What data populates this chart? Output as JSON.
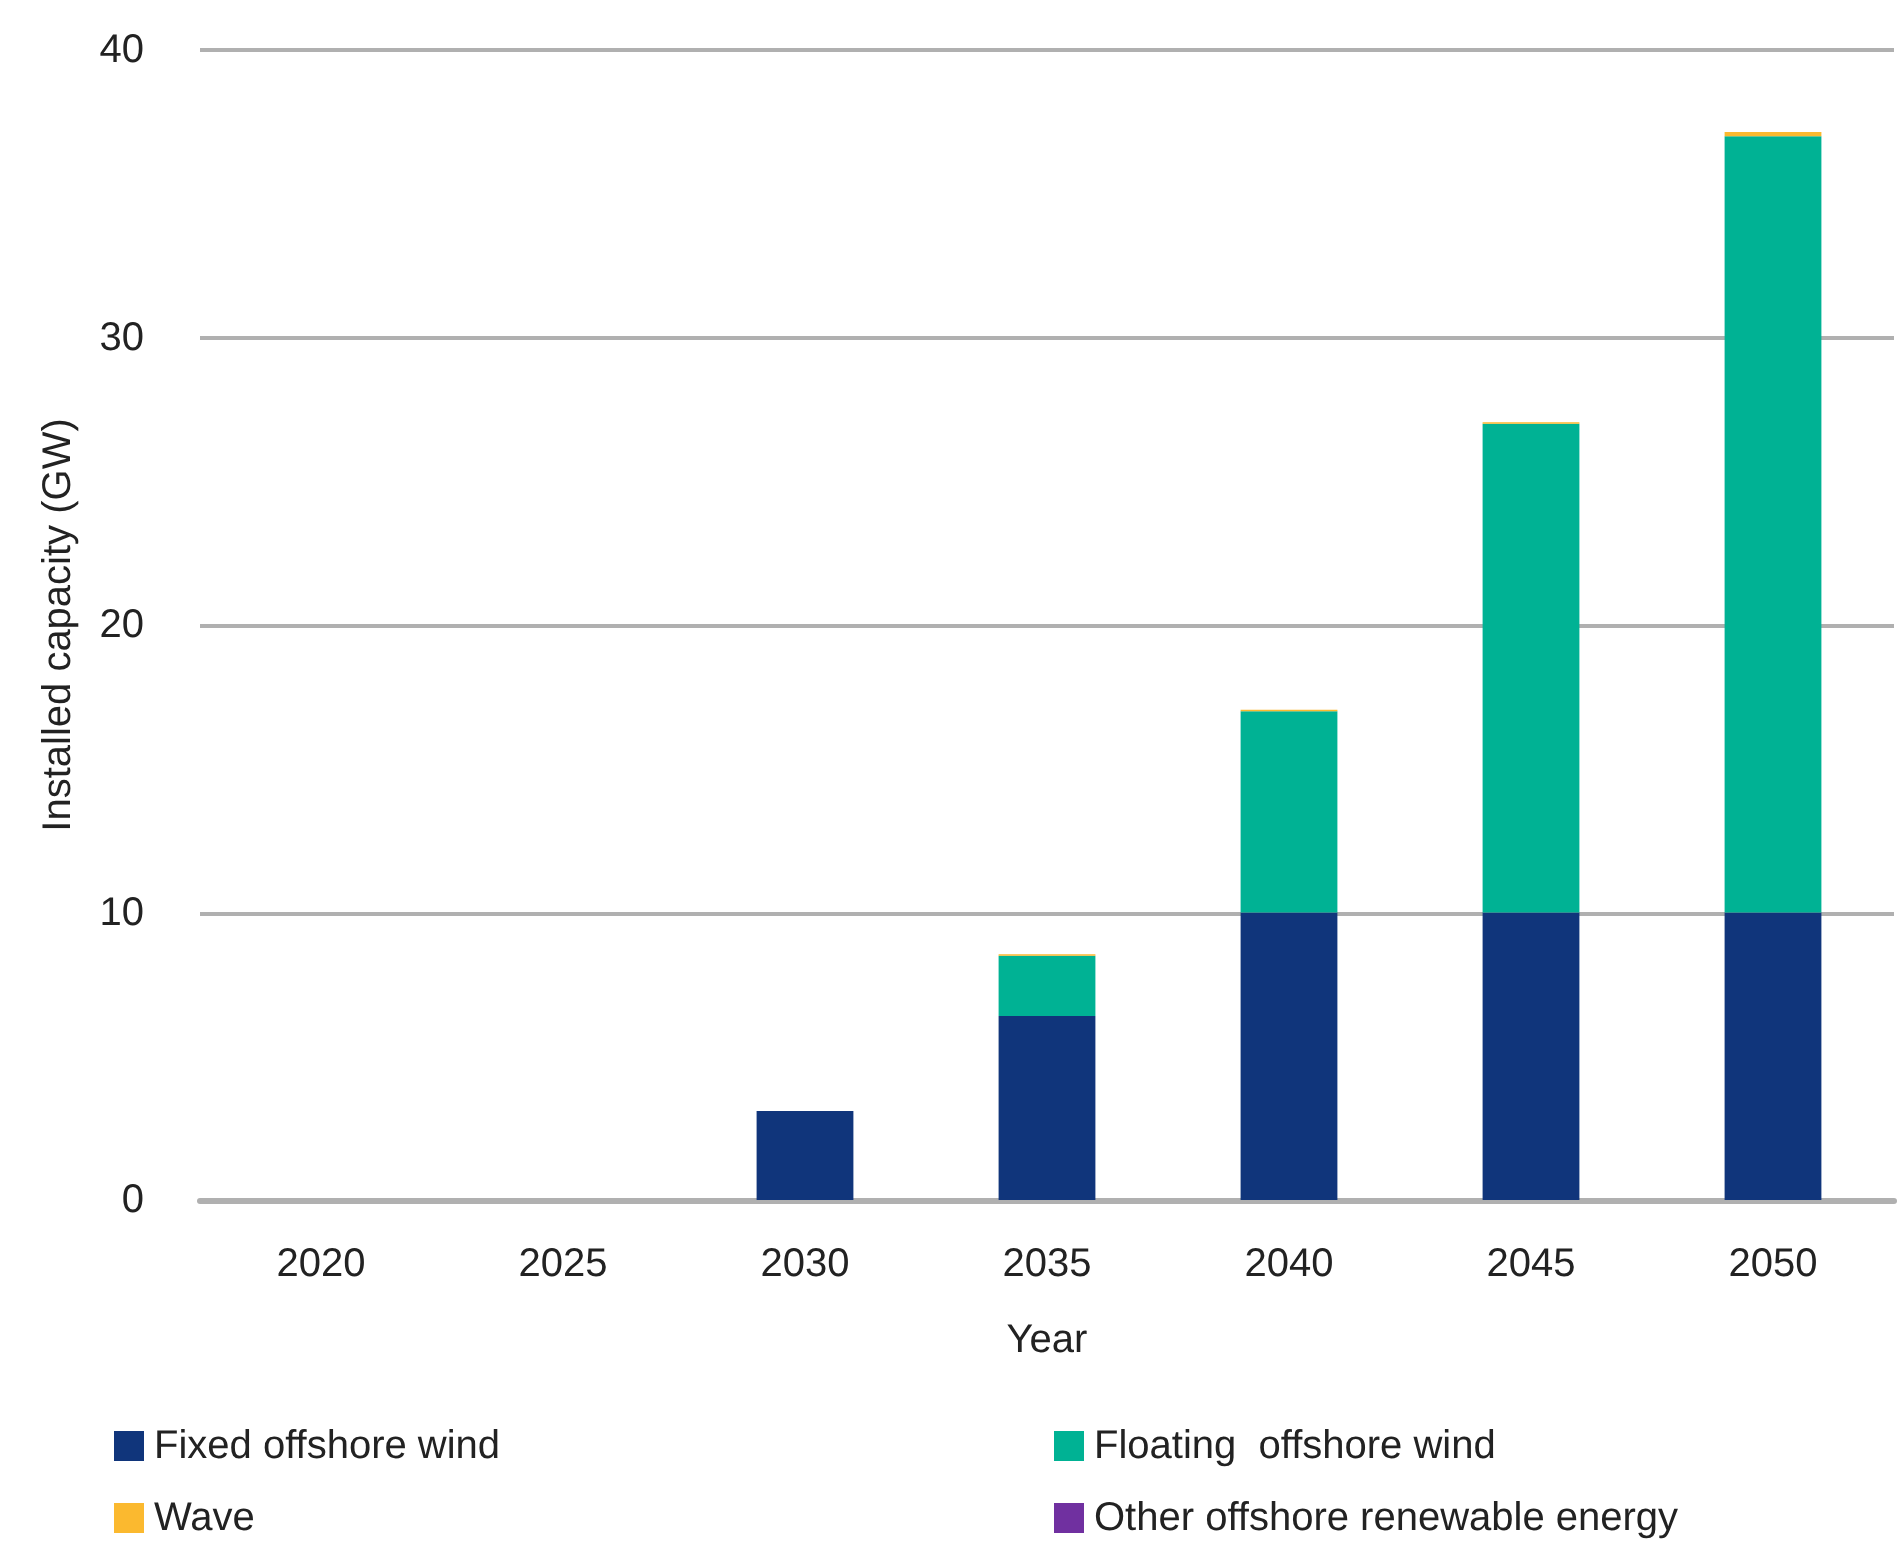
{
  "chart_data": {
    "type": "bar",
    "xlabel": "Year",
    "ylabel": "Installed capacity (GW)",
    "categories": [
      "2020",
      "2025",
      "2030",
      "2035",
      "2040",
      "2045",
      "2050"
    ],
    "series": [
      {
        "name": "Fixed offshore wind",
        "color": "#10357b",
        "values": [
          0,
          0,
          3.1,
          6.4,
          10,
          10,
          10
        ]
      },
      {
        "name": "Floating  offshore wind",
        "color": "#00b294",
        "values": [
          0,
          0,
          0,
          2.1,
          7.0,
          17.0,
          27.0
        ]
      },
      {
        "name": "Wave",
        "color": "#fbb92f",
        "values": [
          0,
          0,
          0,
          0.05,
          0.05,
          0.05,
          0.15
        ]
      },
      {
        "name": "Other offshore renewable energy",
        "color": "#7030a0",
        "values": [
          0,
          0,
          0,
          0,
          0,
          0,
          0
        ]
      }
    ],
    "stacked": true,
    "ylim": [
      0,
      40
    ],
    "yticks": [
      0,
      10,
      20,
      30,
      40
    ],
    "grid": "y",
    "legend": "bottom"
  }
}
